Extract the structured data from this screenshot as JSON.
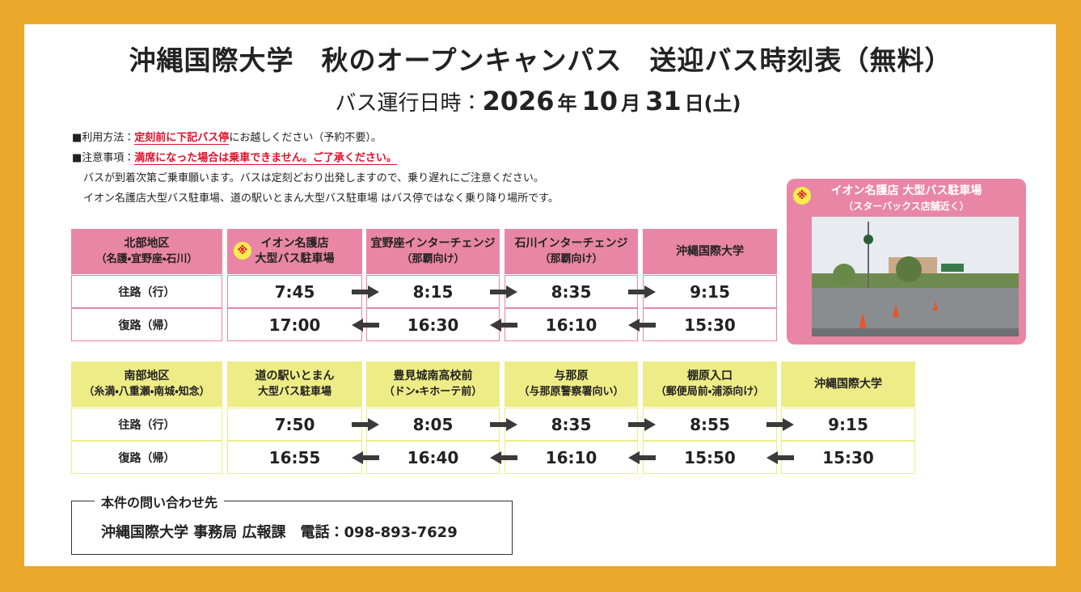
{
  "header": {
    "title": "沖縄国際大学　秋のオープンキャンパス　送迎バス時刻表",
    "title_suffix": "（無料）",
    "date_label": "バス運行日時：",
    "date_parts": [
      "2026",
      "年",
      "10",
      "月",
      "31",
      "日(土)"
    ]
  },
  "notes": [
    {
      "label": "■利用方法：",
      "highlight": "定刻前に下記バス停",
      "rest": "にお越しください（予約不要）。"
    },
    {
      "label": "■注意事項：",
      "highlight": "満席になった場合は乗車できません。ご了承ください。",
      "rest": ""
    },
    {
      "label": "",
      "highlight": "",
      "rest": "バスが到着次第ご乗車願います。バスは定刻どおり出発しますので、乗り遅れにご注意ください。"
    },
    {
      "label": "",
      "highlight": "",
      "rest": "イオン名護店大型バス駐車場、道の駅いとまん大型バス駐車場 はバス停ではなく乗り降り場所です。"
    }
  ],
  "photo": {
    "mark": "※",
    "title": "イオン名護店 大型バス駐車場",
    "subtitle": "（スターバックス店舗近く）"
  },
  "tables": [
    {
      "color": "#e986a6",
      "region": [
        "北部地区",
        "（名護・宜野座・石川）"
      ],
      "stops": [
        {
          "mark": "※",
          "lines": [
            "イオン名護店",
            "大型バス駐車場"
          ]
        },
        {
          "lines": [
            "宜野座インターチェンジ",
            "（那覇向け）"
          ]
        },
        {
          "lines": [
            "石川インターチェンジ",
            "（那覇向け）"
          ]
        },
        {
          "lines": [
            "沖縄国際大学"
          ]
        }
      ],
      "rows": [
        {
          "label": "往路（行）",
          "times": [
            "7:45",
            "8:15",
            "8:35",
            "9:15"
          ]
        },
        {
          "label": "復路（帰）",
          "times": [
            "17:00",
            "16:30",
            "16:10",
            "15:30"
          ]
        }
      ]
    },
    {
      "color": "#eeec86",
      "region": [
        "南部地区",
        "（糸満・八重瀬・南城・知念）"
      ],
      "stops": [
        {
          "lines": [
            "道の駅いとまん",
            "大型バス駐車場"
          ]
        },
        {
          "lines": [
            "豊見城南高校前",
            "（ドン・キホーテ前）"
          ]
        },
        {
          "lines": [
            "与那原",
            "（与那原警察署向い）"
          ]
        },
        {
          "lines": [
            "棚原入口",
            "（郵便局前・浦添向け）"
          ]
        },
        {
          "lines": [
            "沖縄国際大学"
          ]
        }
      ],
      "rows": [
        {
          "label": "往路（行）",
          "times": [
            "7:50",
            "8:05",
            "8:35",
            "8:55",
            "9:15"
          ]
        },
        {
          "label": "復路（帰）",
          "times": [
            "16:55",
            "16:40",
            "16:10",
            "15:50",
            "15:30"
          ]
        }
      ]
    }
  ],
  "contact": {
    "title": "本件の問い合わせ先",
    "body": "沖縄国際大学 事務局 広報課　電話：098-893-7629"
  }
}
